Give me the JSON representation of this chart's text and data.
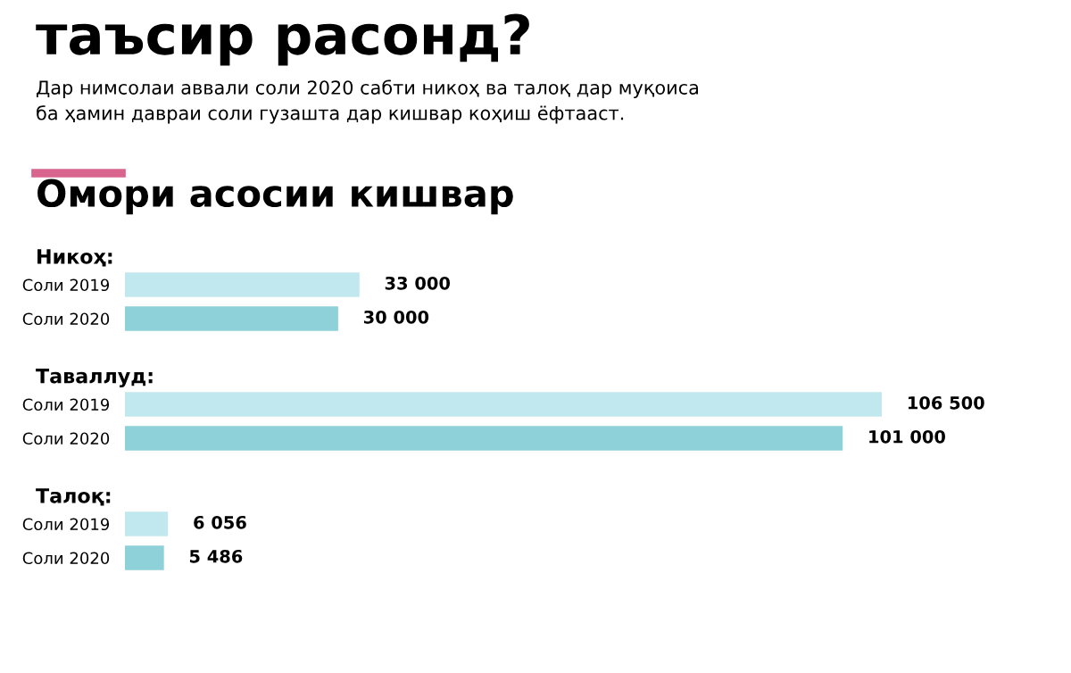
{
  "chart_data": [
    {
      "type": "other",
      "title": "таъсир расонд?",
      "subtitle": "Дар нимсолаи аввали соли 2020 сабти никоҳ ва талоқ дар муқоиса\nба ҳамин давраи соли гузашта дар кишвар коҳиш ёфтааст.",
      "annotations": [
        "Омори асосии кишвар"
      ]
    },
    {
      "type": "bar",
      "orientation": "horizontal",
      "title": "Никоҳ:",
      "categories": [
        "Соли 2019",
        "Соли 2020"
      ],
      "values": [
        33000,
        30000
      ],
      "colors": [
        "#c2e8ef",
        "#8fd1d9"
      ],
      "value_labels": [
        "33 000",
        "30 000"
      ],
      "tick_labels": "y",
      "grid": false,
      "legend": false
    },
    {
      "type": "bar",
      "orientation": "horizontal",
      "title": "Таваллуд:",
      "categories": [
        "Соли 2019",
        "Соли 2020"
      ],
      "values": [
        106500,
        101000
      ],
      "colors": [
        "#c2e8ef",
        "#8fd1d9"
      ],
      "value_labels": [
        "106 500",
        "101 000"
      ],
      "tick_labels": "y",
      "grid": false,
      "legend": false
    },
    {
      "type": "bar",
      "orientation": "horizontal",
      "title": "Талоқ:",
      "categories": [
        "Соли 2019",
        "Соли 2020"
      ],
      "values": [
        6056,
        5486
      ],
      "colors": [
        "#c2e8ef",
        "#8fd1d9"
      ],
      "value_labels": [
        "6 056",
        "5 486"
      ],
      "tick_labels": "y",
      "grid": false,
      "legend": false
    }
  ]
}
